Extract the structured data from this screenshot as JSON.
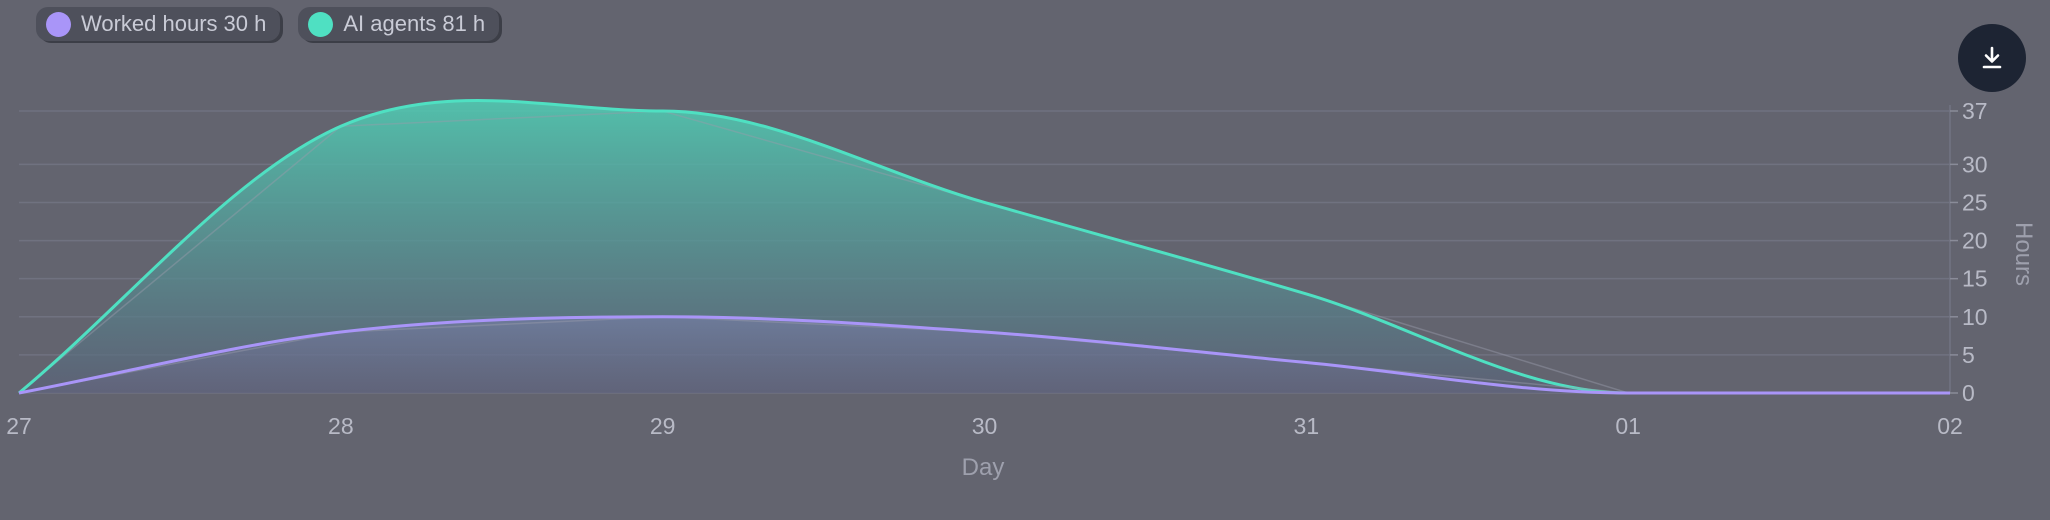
{
  "legend": [
    {
      "label": "Worked hours",
      "total": "30 h",
      "color": "#a995f8"
    },
    {
      "label": "AI agents",
      "total": "81 h",
      "color": "#4fe0c2"
    }
  ],
  "download": {
    "icon": "download-icon"
  },
  "chart_data": {
    "type": "area",
    "x": [
      "27",
      "28",
      "29",
      "30",
      "31",
      "01",
      "02"
    ],
    "xlabel": "Day",
    "ylabel": "Hours",
    "yticks": [
      0,
      5,
      10,
      15,
      20,
      25,
      30,
      37
    ],
    "ylim": [
      0,
      37
    ],
    "y_axis_position": "right",
    "grid": true,
    "legend_position": "top-left",
    "series": [
      {
        "name": "Worked hours",
        "color": "#a995f8",
        "values": [
          0,
          8,
          10,
          8,
          4,
          0,
          0
        ]
      },
      {
        "name": "AI agents",
        "color": "#4fe0c2",
        "values": [
          0,
          35,
          37,
          25,
          13,
          0,
          0
        ]
      }
    ]
  }
}
